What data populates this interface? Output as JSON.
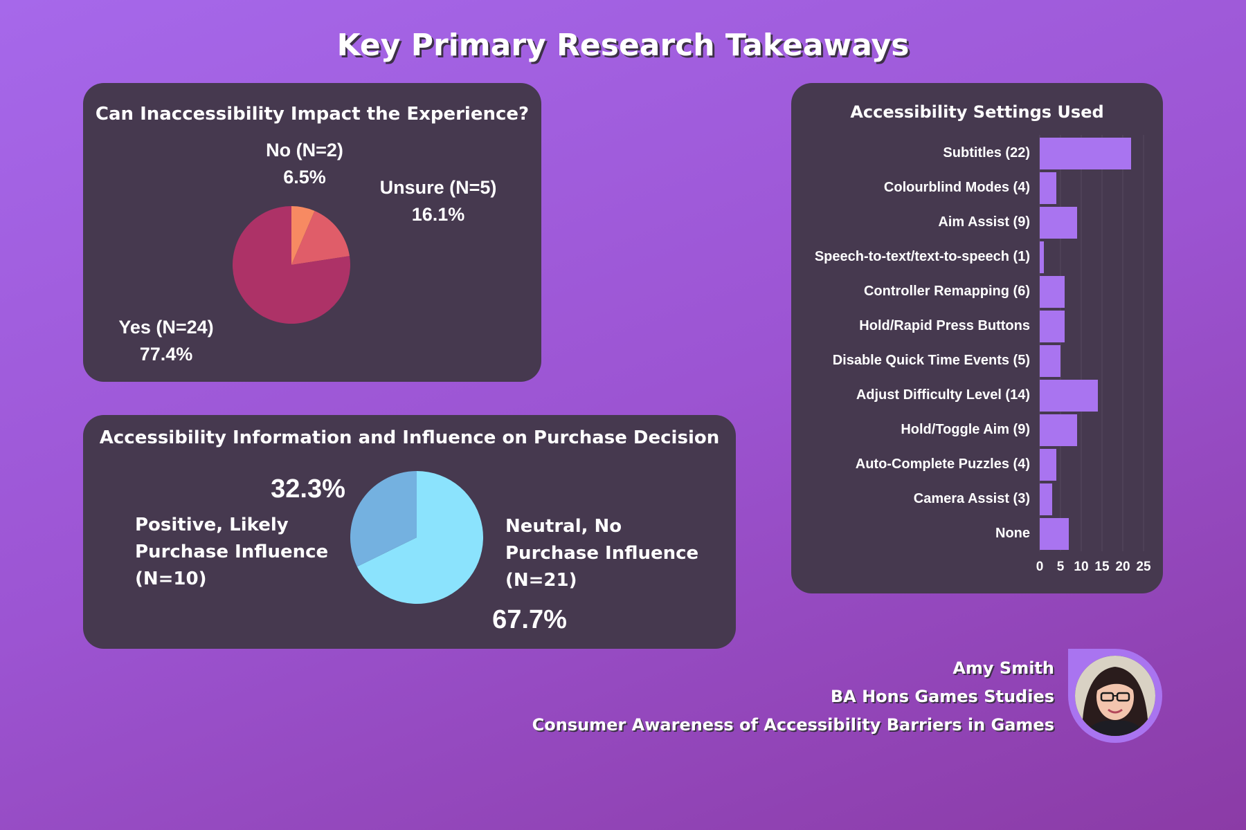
{
  "page": {
    "title": "Key Primary Research Takeaways",
    "accent_color": "#a974f0",
    "panel_color": "#46394f"
  },
  "chart_data": [
    {
      "type": "pie",
      "title": "Can Inaccessibility Impact the Experience?",
      "slices": [
        {
          "label": "Yes (N=24)",
          "percent_label": "77.4%",
          "value": 24,
          "color": "#ad3267"
        },
        {
          "label": "Unsure (N=5)",
          "percent_label": "16.1%",
          "value": 5,
          "color": "#e05d69"
        },
        {
          "label": "No (N=2)",
          "percent_label": "6.5%",
          "value": 2,
          "color": "#f78a62"
        }
      ]
    },
    {
      "type": "pie",
      "title": "Accessibility Information and Influence on Purchase Decision",
      "slices": [
        {
          "label": "Neutral, No Purchase Influence (N=21)",
          "percent_label": "67.7%",
          "value": 21,
          "color": "#8be3fd"
        },
        {
          "label": "Positive, Likely Purchase Influence (N=10)",
          "percent_label": "32.3%",
          "value": 10,
          "color": "#74b1e0"
        }
      ]
    },
    {
      "type": "bar",
      "orientation": "horizontal",
      "title": "Accessibility Settings Used",
      "categories": [
        "Subtitles  (22)",
        "Colourblind Modes (4)",
        "Aim Assist (9)",
        "Speech-to-text/text-to-speech (1)",
        "Controller Remapping (6)",
        "Hold/Rapid Press Buttons",
        "Disable Quick Time Events (5)",
        "Adjust Difficulty Level (14)",
        "Hold/Toggle Aim (9)",
        "Auto-Complete Puzzles (4)",
        "Camera Assist (3)",
        "None"
      ],
      "values": [
        22,
        4,
        9,
        1,
        6,
        6,
        5,
        14,
        9,
        4,
        3,
        7
      ],
      "xlim": [
        0,
        25
      ],
      "xticks": [
        "0",
        "5",
        "10",
        "15",
        "20",
        "25"
      ],
      "bar_color": "#a974f0",
      "grid": true
    }
  ],
  "credits": {
    "name": "Amy Smith",
    "course": "BA Hons Games Studies",
    "project": "Consumer Awareness of Accessibility Barriers in Games"
  }
}
